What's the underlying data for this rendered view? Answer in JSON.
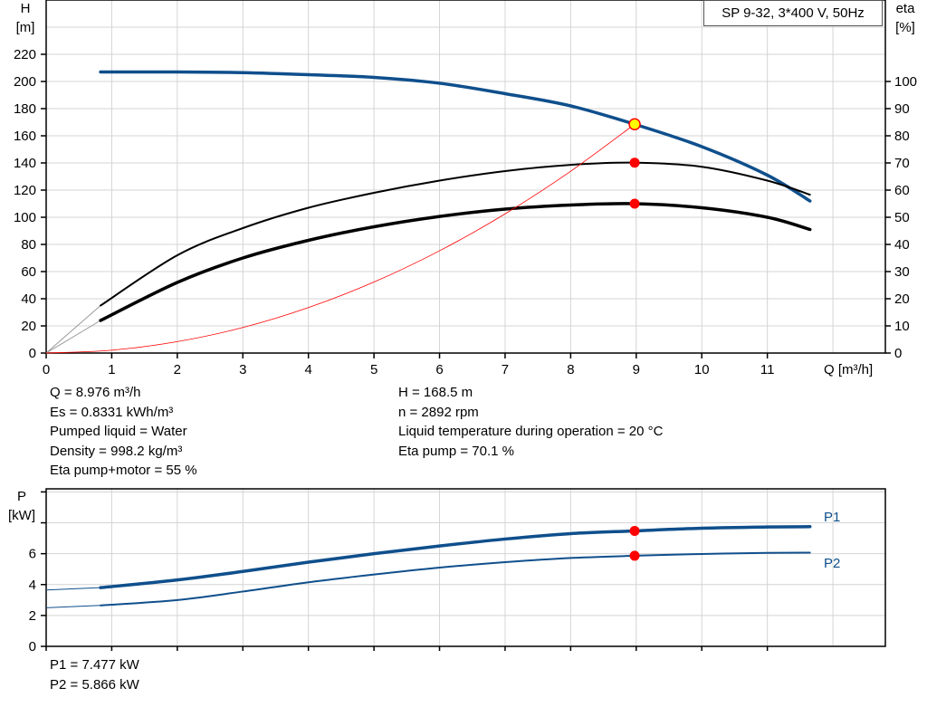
{
  "chart_data": [
    {
      "type": "line",
      "title": "SP 9-32, 3*400 V, 50Hz",
      "xlabel": "Q [m³/h]",
      "ylabel": "H [m]",
      "ylabel_name": "H",
      "ylabel_unit": "[m]",
      "y2label_name": "eta",
      "y2label_unit": "[%]",
      "xlim": [
        0,
        12.8
      ],
      "ylim": [
        0,
        260
      ],
      "y2lim": [
        0,
        130
      ],
      "xticks": [
        0,
        1,
        2,
        3,
        4,
        5,
        6,
        7,
        8,
        9,
        10,
        11
      ],
      "yticks": [
        0,
        20,
        40,
        60,
        80,
        100,
        120,
        140,
        160,
        180,
        200,
        220
      ],
      "y2ticks": [
        0,
        10,
        20,
        30,
        40,
        50,
        60,
        70,
        80,
        90,
        100
      ],
      "grid": true,
      "series": [
        {
          "id": "H",
          "axis": "left",
          "color": "#0f4f8c",
          "width": 3.5,
          "extension_from": 0,
          "x": [
            0,
            0.83,
            2,
            3,
            4,
            5,
            6,
            7,
            8,
            8.976,
            10,
            11,
            11.65
          ],
          "y": [
            207,
            207,
            207,
            206.5,
            205,
            203,
            198.7,
            191,
            182,
            168.5,
            152,
            131,
            112
          ]
        },
        {
          "id": "eta_pump",
          "axis": "right",
          "color": "#000000",
          "width": 2,
          "extension_from": 0,
          "x": [
            0.83,
            2,
            3,
            4,
            5,
            6,
            7,
            8,
            8.976,
            10,
            11,
            11.65
          ],
          "y": [
            17.5,
            36,
            46,
            53.5,
            59,
            63.5,
            67,
            69.3,
            70.1,
            68.6,
            63.5,
            58.3
          ]
        },
        {
          "id": "eta_total",
          "axis": "right",
          "color": "#000000",
          "width": 3.5,
          "extension_from": 0,
          "x": [
            0.83,
            2,
            3,
            4,
            5,
            6,
            7,
            8,
            8.976,
            10,
            11,
            11.65
          ],
          "y": [
            12,
            26,
            35,
            41.5,
            46.5,
            50.3,
            53,
            54.5,
            55,
            53.5,
            50,
            45.5
          ]
        },
        {
          "id": "system",
          "axis": "left",
          "color": "#ff0000",
          "width": 0.8,
          "x": [
            0,
            1,
            2,
            3,
            4,
            5,
            6,
            7,
            8,
            8.976
          ],
          "y": [
            0,
            2.1,
            8.4,
            18.8,
            33.5,
            52.3,
            75.3,
            102.5,
            133.9,
            168.5
          ]
        }
      ],
      "operating_point": {
        "Q": 8.976,
        "H": 168.5,
        "eta_pump": 70.1,
        "eta_total": 55,
        "marker_fill": "#ffff00",
        "marker_stroke": "#ff0000",
        "dot_color": "#ff0000"
      }
    },
    {
      "type": "line",
      "ylabel_name": "P",
      "ylabel_unit": "[kW]",
      "xlim": [
        0,
        12.8
      ],
      "ylim": [
        0,
        10.2
      ],
      "yticks": [
        0,
        2,
        4,
        6,
        8,
        10
      ],
      "ytick_labels": [
        "0",
        "2",
        "4",
        "6",
        "",
        ""
      ],
      "grid": true,
      "series": [
        {
          "name": "P1",
          "color": "#0f4f8c",
          "width": 3.5,
          "x": [
            0,
            0.83,
            2,
            3,
            4,
            5,
            6,
            7,
            8,
            8.976,
            10,
            11,
            11.65
          ],
          "y": [
            3.65,
            3.8,
            4.3,
            4.85,
            5.45,
            6.0,
            6.5,
            6.95,
            7.3,
            7.477,
            7.65,
            7.73,
            7.75
          ]
        },
        {
          "name": "P2",
          "color": "#0f4f8c",
          "width": 2,
          "x": [
            0,
            0.83,
            2,
            3,
            4,
            5,
            6,
            7,
            8,
            8.976,
            10,
            11,
            11.65
          ],
          "y": [
            2.5,
            2.65,
            3.0,
            3.55,
            4.15,
            4.65,
            5.1,
            5.45,
            5.72,
            5.866,
            5.98,
            6.05,
            6.07
          ]
        }
      ]
    }
  ],
  "title_box": "SP 9-32, 3*400 V, 50Hz",
  "info_left": [
    "Q = 8.976 m³/h",
    "Es = 0.8331 kWh/m³",
    "Pumped liquid = Water",
    "Density = 998.2 kg/m³",
    "Eta pump+motor = 55 %"
  ],
  "info_right": [
    "H = 168.5 m",
    "n = 2892 rpm",
    "Liquid temperature during operation = 20 °C",
    "Eta pump = 70.1 %"
  ],
  "power_info": [
    "P1 = 7.477 kW",
    "P2 = 5.866 kW"
  ]
}
